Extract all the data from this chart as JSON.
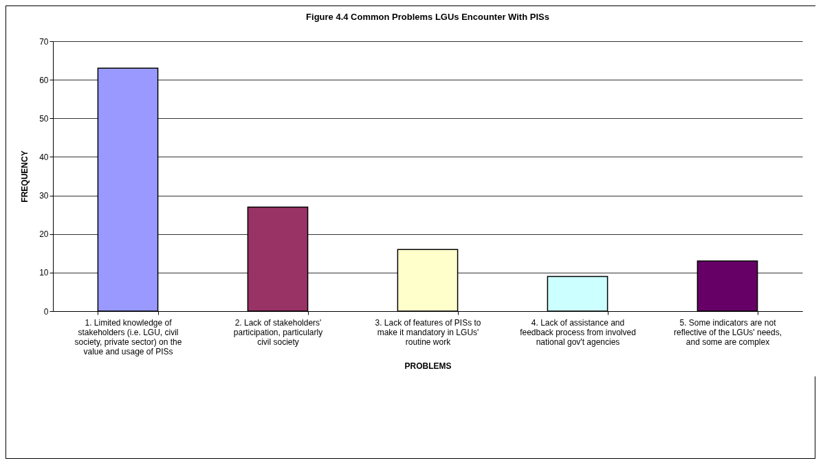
{
  "chart_data": {
    "type": "bar",
    "title": "Figure 4.4 Common Problems LGUs Encounter With PISs",
    "xlabel": "PROBLEMS",
    "ylabel": "FREQUENCY",
    "categories": [
      "1. Limited knowledge of stakeholders (i.e. LGU, civil society, private sector) on the value and usage of PISs",
      "2. Lack of stakeholders' participation, particularly civil society",
      "3. Lack of features of PISs to make it mandatory in LGUs' routine work",
      "4. Lack of assistance and feedback process from involved national gov't agencies",
      "5. Some indicators are not reflective of the LGUs' needs, and some are complex"
    ],
    "values": [
      63,
      27,
      16,
      9,
      13
    ],
    "colors": [
      "#9999ff",
      "#993366",
      "#ffffcc",
      "#ccffff",
      "#660066"
    ],
    "ylim": [
      0,
      70
    ],
    "yticks": [
      0,
      10,
      20,
      30,
      40,
      50,
      60,
      70
    ],
    "grid": "y",
    "legend": false
  }
}
